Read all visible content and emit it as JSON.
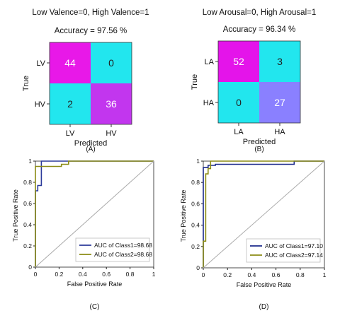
{
  "chart_data": [
    {
      "type": "heatmap",
      "panel_label": "(A)",
      "subtitle": "Low Valence=0, High Valence=1",
      "title": "Accuracy = 97.56 %",
      "xlabel": "Predicted",
      "ylabel": "True",
      "x_ticks": [
        "LV",
        "HV"
      ],
      "y_ticks": [
        "LV",
        "HV"
      ],
      "matrix": [
        [
          44,
          0
        ],
        [
          2,
          36
        ]
      ],
      "cell_colors": [
        [
          "#e818e8",
          "#22e6ee"
        ],
        [
          "#22e6ee",
          "#c236ee"
        ]
      ]
    },
    {
      "type": "heatmap",
      "panel_label": "(B)",
      "subtitle": "Low Arousal=0, High Arousal=1",
      "title": "Accuracy = 96.34 %",
      "xlabel": "Predicted",
      "ylabel": "True",
      "x_ticks": [
        "LA",
        "HA"
      ],
      "y_ticks": [
        "LA",
        "HA"
      ],
      "matrix": [
        [
          52,
          3
        ],
        [
          0,
          27
        ]
      ],
      "cell_colors": [
        [
          "#e414ea",
          "#22e6ee"
        ],
        [
          "#22e6ee",
          "#8a80ff"
        ]
      ]
    },
    {
      "type": "line",
      "panel_label": "(C)",
      "xlabel": "False Positive Rate",
      "ylabel": "True Positive Rate",
      "xlim": [
        0,
        1
      ],
      "ylim": [
        0,
        1
      ],
      "x_ticks": [
        "0",
        "0.2",
        "0.4",
        "0.6",
        "0.8",
        "1"
      ],
      "y_ticks": [
        "0",
        "0.2",
        "0.4",
        "0.6",
        "0.8",
        "1"
      ],
      "legend_position": "bottom-right",
      "series": [
        {
          "name": "AUC of Class1=98.68",
          "color": "#2b3a9a",
          "x": [
            0,
            0,
            0.02,
            0.02,
            0.05,
            0.05,
            0.28,
            0.28,
            1
          ],
          "y": [
            0,
            0.72,
            0.72,
            0.77,
            0.77,
            1,
            1,
            1,
            1
          ]
        },
        {
          "name": "AUC of Class2=98.68",
          "color": "#8c8c14",
          "x": [
            0,
            0,
            0.22,
            0.22,
            0.28,
            0.28,
            1
          ],
          "y": [
            0,
            0.95,
            0.95,
            0.97,
            0.97,
            1,
            1
          ]
        },
        {
          "name": "",
          "color": "#aaaaaa",
          "x": [
            0,
            1
          ],
          "y": [
            0,
            1
          ]
        }
      ]
    },
    {
      "type": "line",
      "panel_label": "(D)",
      "xlabel": "False Positive Rate",
      "ylabel": "True Positive Rate",
      "xlim": [
        0,
        1
      ],
      "ylim": [
        0,
        1
      ],
      "x_ticks": [
        "0",
        "0.2",
        "0.4",
        "0.6",
        "0.8",
        "1"
      ],
      "y_ticks": [
        "0",
        "0.2",
        "0.4",
        "0.6",
        "0.8",
        "1"
      ],
      "legend_position": "bottom-right",
      "series": [
        {
          "name": "AUC of Class1=97.10",
          "color": "#1c2a8c",
          "x": [
            0,
            0,
            0.04,
            0.04,
            0.1,
            0.1,
            0.75,
            0.75,
            1
          ],
          "y": [
            0,
            0.94,
            0.94,
            0.96,
            0.96,
            0.97,
            0.97,
            1,
            1
          ]
        },
        {
          "name": "AUC of Class2=97.14",
          "color": "#8c8c14",
          "x": [
            0,
            0,
            0.02,
            0.02,
            0.04,
            0.04,
            0.06,
            0.06,
            1
          ],
          "y": [
            0,
            0.25,
            0.25,
            0.88,
            0.88,
            0.93,
            0.93,
            1,
            1
          ]
        },
        {
          "name": "",
          "color": "#aaaaaa",
          "x": [
            0,
            1
          ],
          "y": [
            0,
            1
          ]
        }
      ]
    }
  ]
}
